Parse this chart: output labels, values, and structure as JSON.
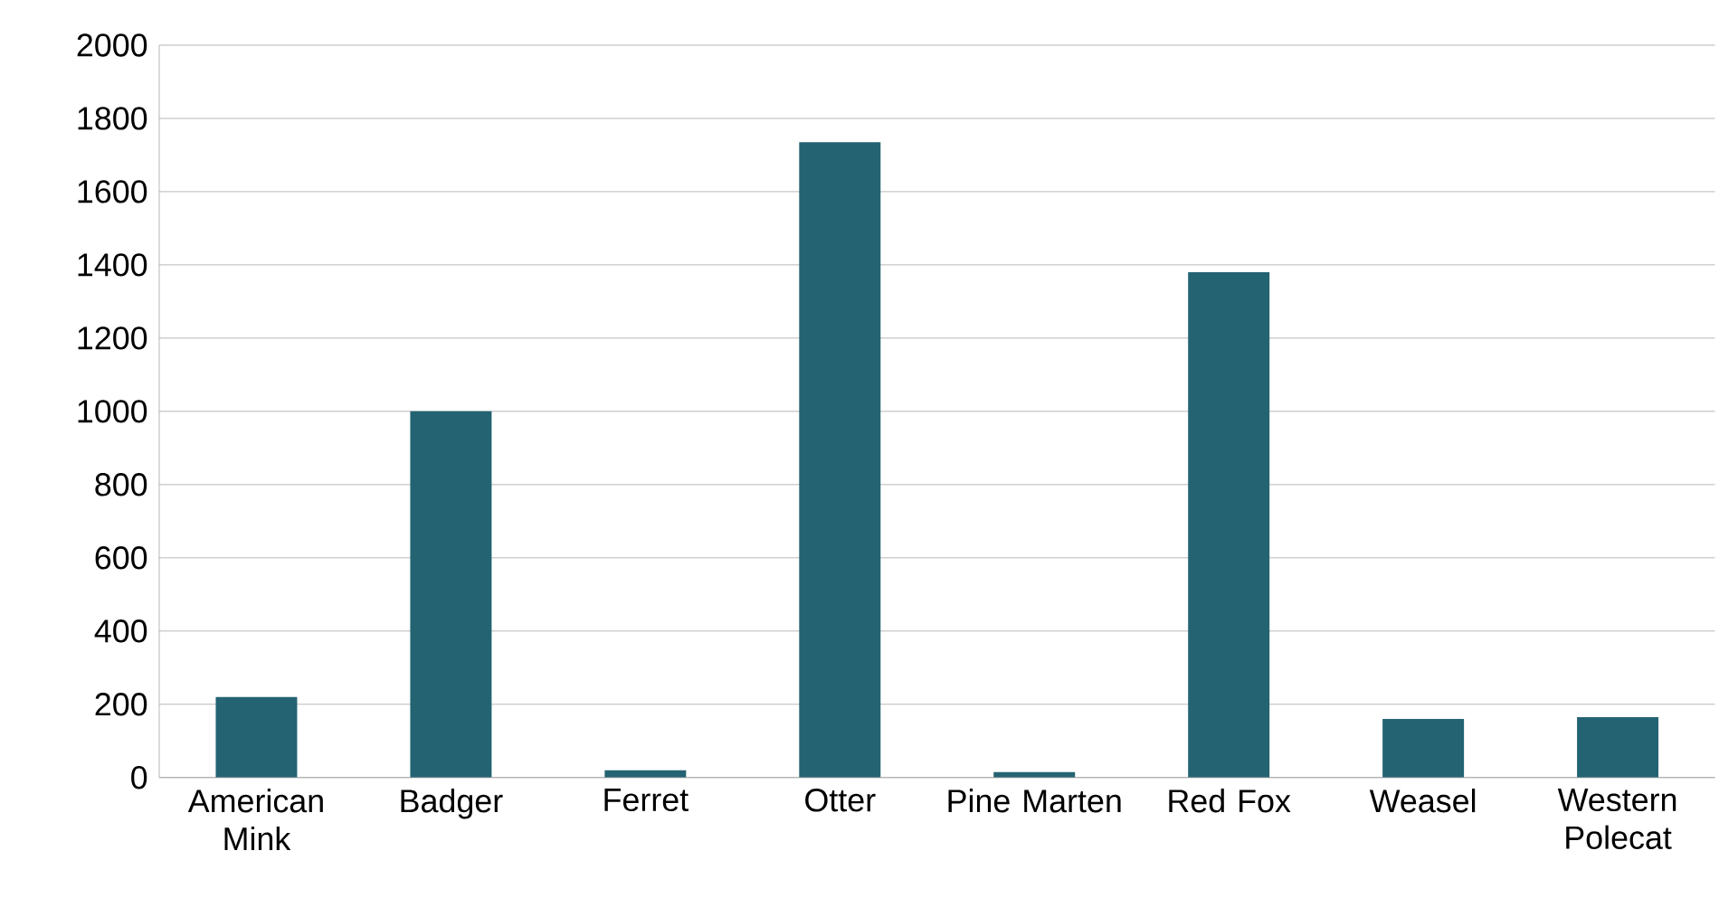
{
  "chart_data": {
    "type": "bar",
    "categories": [
      "American Mink",
      "Badger",
      "Ferret",
      "Otter",
      "Pine Marten",
      "Red Fox",
      "Weasel",
      "Western Polecat"
    ],
    "values": [
      220,
      1000,
      20,
      1735,
      15,
      1380,
      160,
      165
    ],
    "color": "#246372",
    "ylim": [
      0,
      2000
    ],
    "yticks": [
      0,
      200,
      400,
      600,
      800,
      1000,
      1200,
      1400,
      1600,
      1800,
      2000
    ],
    "grid": "y"
  }
}
